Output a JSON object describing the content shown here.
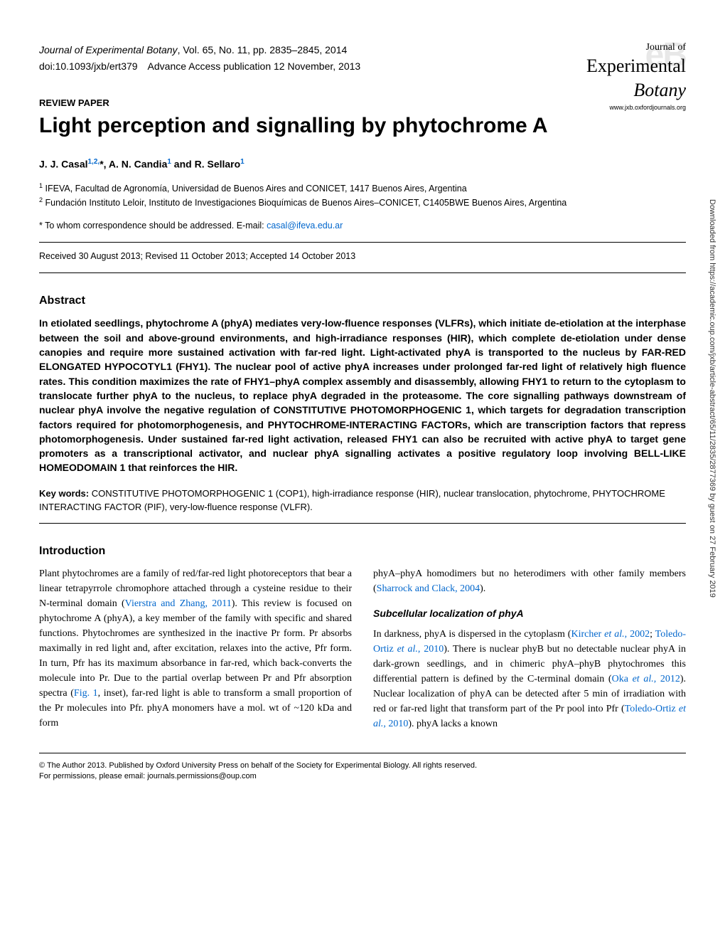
{
  "header": {
    "journal_citation": "Journal of Experimental Botany",
    "volume_info": ", Vol. 65, No. 11, pp. 2835–2845, 2014",
    "doi_line": "doi:10.1093/jxb/ert379 Advance Access publication 12 November, 2013"
  },
  "journal_logo": {
    "watermark": "eB",
    "line1": "Journal of",
    "line2": "Experimental",
    "line3": "Botany",
    "url": "www.jxb.oxfordjournals.org"
  },
  "article": {
    "type_label": "REVIEW PAPER",
    "title": "Light perception and signalling by phytochrome A",
    "authors_html": "J. J. Casal<sup>1,2,</sup>*, A. N. Candia<sup>1</sup> and R. Sellaro<sup>1</sup>",
    "affiliation1": "IFEVA, Facultad de Agronomía, Universidad de Buenos Aires and CONICET, 1417 Buenos Aires, Argentina",
    "affiliation2": "Fundación Instituto Leloir, Instituto de Investigaciones Bioquímicas de Buenos Aires–CONICET, C1405BWE Buenos Aires, Argentina",
    "correspondence_text": "* To whom correspondence should be addressed. E-mail: ",
    "correspondence_email": "casal@ifeva.edu.ar",
    "dates": "Received 30 August 2013; Revised 11 October 2013; Accepted 14 October 2013"
  },
  "abstract": {
    "heading": "Abstract",
    "text": "In etiolated seedlings, phytochrome A (phyA) mediates very-low-fluence responses (VLFRs), which initiate de-etiolation at the interphase between the soil and above-ground environments, and high-irradiance responses (HIR), which complete de-etiolation under dense canopies and require more sustained activation with far-red light. Light-activated phyA is transported to the nucleus by FAR-RED ELONGATED HYPOCOTYL1 (FHY1). The nuclear pool of active phyA increases under prolonged far-red light of relatively high fluence rates. This condition maximizes the rate of FHY1–phyA complex assembly and disassembly, allowing FHY1 to return to the cytoplasm to translocate further phyA to the nucleus, to replace phyA degraded in the proteasome. The core signalling pathways downstream of nuclear phyA involve the negative regulation of CONSTITUTIVE PHOTOMORPHOGENIC 1, which targets for degradation transcription factors required for photomorphogenesis, and PHYTOCHROME-INTERACTING FACTORs, which are transcription factors that repress photomorphogenesis. Under sustained far-red light activation, released FHY1 can also be recruited with active phyA to target gene promoters as a transcriptional activator, and nuclear phyA signalling activates a positive regulatory loop involving BELL-LIKE HOMEODOMAIN 1 that reinforces the HIR."
  },
  "keywords": {
    "label": "Key words:",
    "text": "  CONSTITUTIVE PHOTOMORPHOGENIC 1 (COP1), high-irradiance response (HIR), nuclear translocation, phytochrome, PHYTOCHROME INTERACTING FACTOR (PIF), very-low-fluence response (VLFR)."
  },
  "introduction": {
    "heading": "Introduction",
    "col1_p1_pre": "Plant phytochromes are a family of red/far-red light photoreceptors that bear a linear tetrapyrrole chromophore attached through a cysteine residue to their N-terminal domain (",
    "col1_ref1": "Vierstra and Zhang, 2011",
    "col1_p1_mid": "). This review is focused on phytochrome A (phyA), a key member of the family with specific and shared functions. Phytochromes are synthesized in the inactive Pr form. Pr absorbs maximally in red light and, after excitation, relaxes into the active, Pfr form. In turn, Pfr has its maximum absorbance in far-red, which back-converts the molecule into Pr. Due to the partial overlap between Pr and Pfr absorption spectra (",
    "col1_ref2": "Fig. 1",
    "col1_p1_end": ", inset), far-red light is able to transform a small proportion of the Pr molecules into Pfr. phyA monomers have a mol. wt of ~120 kDa and form",
    "col2_p1_pre": "phyA–phyA homodimers but no heterodimers with other family members (",
    "col2_ref1": "Sharrock and Clack, 2004",
    "col2_p1_end": ").",
    "subsection_heading": "Subcellular localization of phyA",
    "col2_p2_pre": "In darkness, phyA is dispersed in the cytoplasm (",
    "col2_ref2": "Kircher et al., 2002",
    "col2_sep1": "; ",
    "col2_ref3": "Toledo-Ortiz et al., 2010",
    "col2_p2_mid": "). There is nuclear phyB but no detectable nuclear phyA in dark-grown seedlings, and in chimeric phyA–phyB phytochromes this differential pattern is defined by the C-terminal domain (",
    "col2_ref4": "Oka et al., 2012",
    "col2_p2_mid2": "). Nuclear localization of phyA can be detected after 5 min of irradiation with red or far-red light that transform part of the Pr pool into Pfr (",
    "col2_ref5": "Toledo-Ortiz et al., 2010",
    "col2_p2_end": "). phyA lacks a known"
  },
  "footer": {
    "copyright": "© The Author 2013. Published by Oxford University Press on behalf of the Society for Experimental Biology. All rights reserved.",
    "permissions": "For permissions, please email: journals.permissions@oup.com"
  },
  "side_text": "Downloaded from https://academic.oup.com/jxb/article-abstract/65/11/2835/2877369 by guest on 27 February 2019"
}
